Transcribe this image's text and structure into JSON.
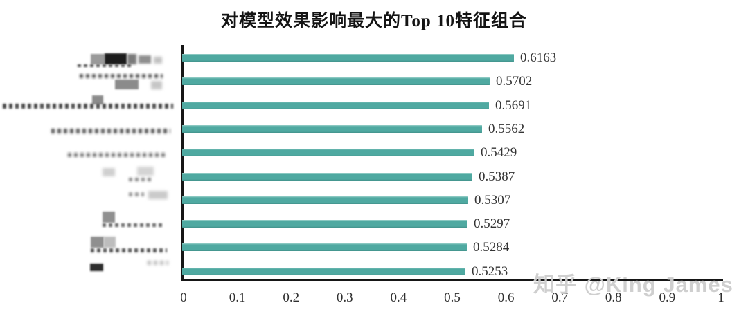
{
  "title": "对模型效果影响最大的Top 10特征组合",
  "watermark": "知乎 @King James",
  "chart_data": {
    "type": "bar",
    "orientation": "horizontal",
    "title": "对模型效果影响最大的Top 10特征组合",
    "categories": [
      "",
      "",
      "",
      "",
      "",
      "",
      "",
      "",
      "",
      ""
    ],
    "categories_note": "All 10 y-axis category labels are pixelated/blurred (redacted) in the source image and unreadable",
    "values": [
      0.6163,
      0.5702,
      0.5691,
      0.5562,
      0.5429,
      0.5387,
      0.5307,
      0.5297,
      0.5284,
      0.5253
    ],
    "value_labels": [
      "0.6163",
      "0.5702",
      "0.5691",
      "0.5562",
      "0.5429",
      "0.5387",
      "0.5307",
      "0.5297",
      "0.5284",
      "0.5253"
    ],
    "xlabel": "",
    "ylabel": "",
    "xlim": [
      0,
      1
    ],
    "x_ticks": [
      "0",
      "0.1",
      "0.2",
      "0.3",
      "0.4",
      "0.5",
      "0.6",
      "0.7",
      "0.8",
      "0.9",
      "1"
    ],
    "grid": false,
    "legend": null,
    "bar_color": "#4fa9a1",
    "bar_color_dark": "#41918a",
    "bar_color_light": "#9ed2cc",
    "axis_color": "#161616",
    "text_color": "#343434",
    "watermark_color": "#cccccc"
  }
}
